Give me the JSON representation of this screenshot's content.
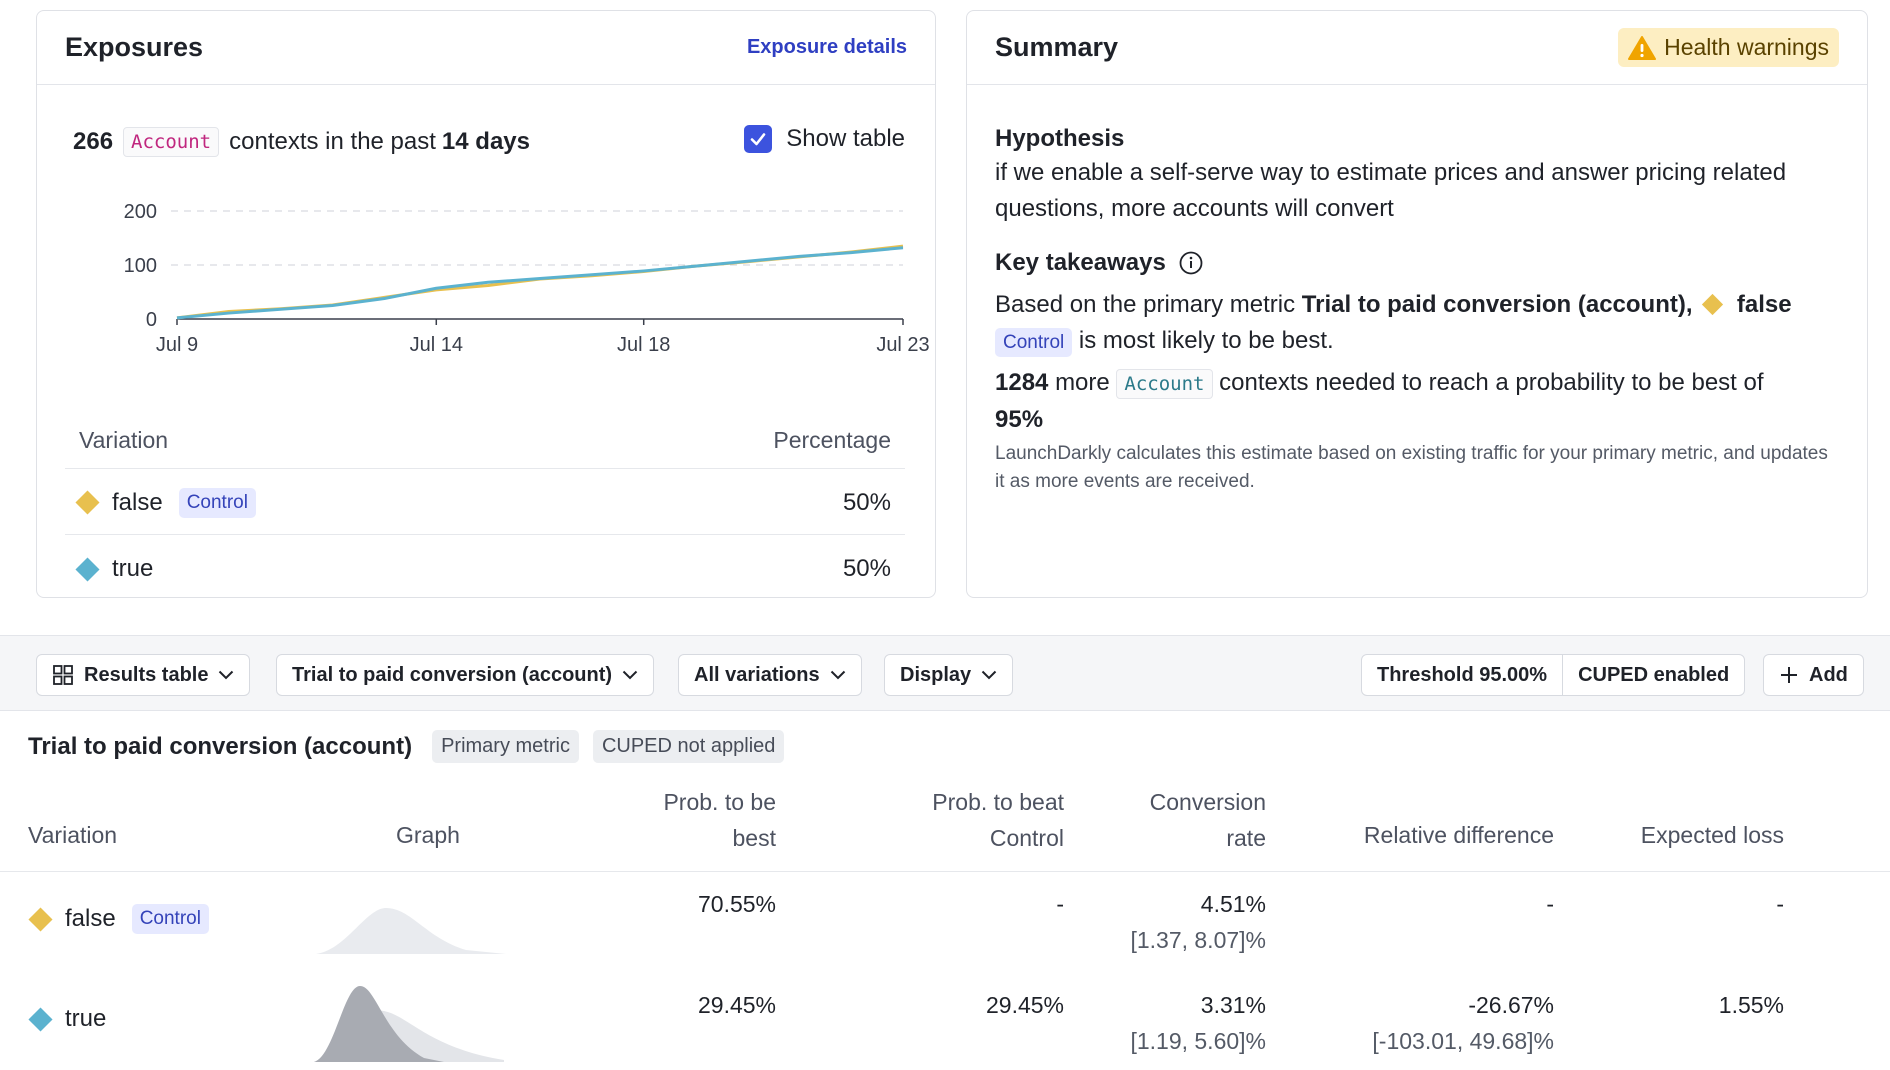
{
  "exposures": {
    "title": "Exposures",
    "details_link": "Exposure details",
    "count": "266",
    "context_kind": "Account",
    "context_text": "contexts in the past",
    "period": "14 days",
    "show_table_label": "Show table",
    "show_table_checked": true,
    "table": {
      "header_variation": "Variation",
      "header_percentage": "Percentage",
      "rows": [
        {
          "name": "false",
          "badge": "Control",
          "percent": "50%",
          "color": "#e8c04e"
        },
        {
          "name": "true",
          "badge": "",
          "percent": "50%",
          "color": "#5bb2cf"
        }
      ]
    }
  },
  "chart_data": {
    "type": "line",
    "title": "",
    "xlabel": "",
    "ylabel": "",
    "x": [
      "Jul 9",
      "Jul 10",
      "Jul 11",
      "Jul 12",
      "Jul 13",
      "Jul 14",
      "Jul 15",
      "Jul 16",
      "Jul 17",
      "Jul 18",
      "Jul 19",
      "Jul 20",
      "Jul 21",
      "Jul 22",
      "Jul 23"
    ],
    "x_tick_labels": [
      "Jul 9",
      "Jul 14",
      "Jul 18",
      "Jul 23"
    ],
    "y_ticks": [
      0,
      100,
      200
    ],
    "ylim": [
      0,
      200
    ],
    "grid": true,
    "series": [
      {
        "color": "#e8c04e",
        "values": [
          2,
          14,
          19,
          26,
          40,
          54,
          62,
          74,
          80,
          88,
          98,
          106,
          115,
          124,
          135
        ]
      },
      {
        "color": "#5bb2cf",
        "values": [
          2,
          11,
          18,
          25,
          38,
          57,
          68,
          75,
          82,
          89,
          98,
          107,
          116,
          123,
          132
        ]
      }
    ]
  },
  "summary": {
    "title": "Summary",
    "health_warnings": "Health warnings",
    "hypothesis_label": "Hypothesis",
    "hypothesis_text": "if we enable a self-serve way to estimate prices and answer pricing related questions, more accounts will convert",
    "takeaways_label": "Key takeaways",
    "takeaway_prefix": "Based on the primary metric",
    "takeaway_metric": "Trial to paid conversion (account),",
    "takeaway_variation": "false",
    "takeaway_badge": "Control",
    "takeaway_suffix": "is most likely to be best.",
    "needed_count": "1284",
    "needed_more": "more",
    "needed_kind": "Account",
    "needed_text": "contexts needed to reach a probability to be best of",
    "needed_prob": "95%",
    "note": "LaunchDarkly calculates this estimate based on existing traffic for your primary metric, and updates it as more events are received."
  },
  "toolbar": {
    "results_table": "Results table",
    "metric_select": "Trial to paid conversion (account)",
    "variations_select": "All variations",
    "display_select": "Display",
    "threshold": "Threshold 95.00%",
    "cuped": "CUPED enabled",
    "add": "Add"
  },
  "results": {
    "metric_title": "Trial to paid conversion (account)",
    "primary_badge": "Primary metric",
    "cuped_badge": "CUPED not applied",
    "headers": {
      "variation": "Variation",
      "graph": "Graph",
      "prob_best_1": "Prob. to be",
      "prob_best_2": "best",
      "prob_beat_1": "Prob. to beat",
      "prob_beat_2": "Control",
      "conv_1": "Conversion",
      "conv_2": "rate",
      "relative": "Relative difference",
      "loss": "Expected loss"
    },
    "rows": [
      {
        "name": "false",
        "badge": "Control",
        "prob_best": "70.55%",
        "prob_beat": "-",
        "conv": "4.51%",
        "conv_ci": "[1.37, 8.07]%",
        "relative": "-",
        "relative_ci": "",
        "loss": "-"
      },
      {
        "name": "true",
        "badge": "",
        "prob_best": "29.45%",
        "prob_beat": "29.45%",
        "conv": "3.31%",
        "conv_ci": "[1.19, 5.60]%",
        "relative": "-26.67%",
        "relative_ci": "[-103.01, 49.68]%",
        "loss": "1.55%"
      }
    ]
  }
}
